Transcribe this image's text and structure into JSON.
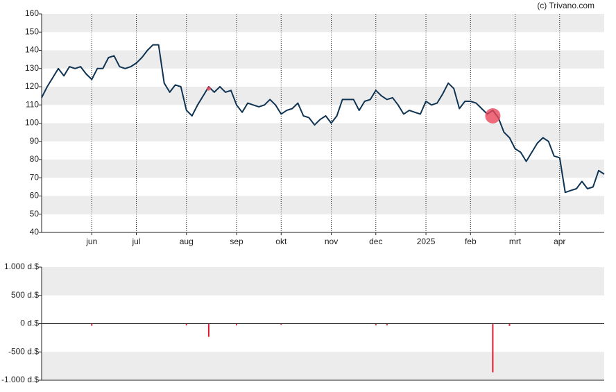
{
  "credit": "(c) Trivano.com",
  "chart_data": [
    {
      "type": "line",
      "categories": [
        null,
        null,
        null,
        null,
        null,
        null,
        null,
        null,
        null,
        "jun",
        null,
        null,
        null,
        null,
        null,
        null,
        null,
        "jul",
        null,
        null,
        null,
        null,
        null,
        null,
        null,
        null,
        "aug",
        null,
        null,
        null,
        null,
        null,
        null,
        null,
        null,
        "sep",
        null,
        null,
        null,
        null,
        null,
        null,
        null,
        "okt",
        null,
        null,
        null,
        null,
        null,
        null,
        null,
        null,
        "nov",
        null,
        null,
        null,
        null,
        null,
        null,
        null,
        "dec",
        null,
        null,
        null,
        null,
        null,
        null,
        null,
        null,
        "2025",
        null,
        null,
        null,
        null,
        null,
        null,
        null,
        "feb",
        null,
        null,
        null,
        null,
        null,
        null,
        null,
        "mrt",
        null,
        null,
        null,
        null,
        null,
        null,
        null,
        "apr",
        null,
        null,
        null,
        null,
        null,
        null,
        null,
        null
      ],
      "series": [
        {
          "color": "#0f3352",
          "values": [
            114,
            120,
            125,
            130,
            126,
            131,
            130,
            131,
            127,
            124,
            130,
            130,
            136,
            137,
            131,
            130,
            131,
            133,
            136,
            140,
            143,
            143,
            122,
            117,
            121,
            120,
            107,
            104,
            110,
            115,
            120,
            117,
            120,
            117,
            118,
            110,
            106,
            111,
            110,
            109,
            110,
            113,
            110,
            105,
            107,
            108,
            111,
            104,
            103,
            99,
            102,
            104,
            100,
            104,
            113,
            113,
            113,
            107,
            112,
            113,
            118,
            115,
            113,
            114,
            110,
            105,
            107,
            106,
            105,
            112,
            110,
            111,
            116,
            122,
            119,
            108,
            112,
            112,
            111,
            108,
            105,
            107,
            103,
            95,
            92,
            86,
            84,
            79,
            84,
            89,
            92,
            90,
            82,
            81,
            62,
            63,
            64,
            68,
            64,
            65,
            74,
            72
          ]
        }
      ],
      "points": [
        {
          "x": 30,
          "value": 119,
          "size": 3
        },
        {
          "x": 81,
          "value": 104,
          "size": 11
        }
      ],
      "point_color": "#e8465a",
      "ylim": [
        40,
        160
      ],
      "yticks": [
        40,
        50,
        60,
        70,
        80,
        90,
        100,
        110,
        120,
        130,
        140,
        150,
        160
      ],
      "bands": [
        [
          150,
          160
        ],
        [
          130,
          140
        ],
        [
          110,
          120
        ],
        [
          90,
          100
        ],
        [
          70,
          80
        ],
        [
          50,
          60
        ]
      ]
    },
    {
      "type": "bar",
      "color": "#e0182d",
      "values": [
        null,
        null,
        null,
        null,
        null,
        null,
        null,
        null,
        null,
        -37,
        null,
        null,
        null,
        null,
        null,
        null,
        null,
        null,
        null,
        null,
        null,
        null,
        null,
        null,
        null,
        null,
        -30,
        null,
        null,
        null,
        -233,
        null,
        null,
        null,
        null,
        -30,
        null,
        null,
        null,
        null,
        null,
        null,
        null,
        -20,
        null,
        null,
        null,
        null,
        null,
        null,
        null,
        null,
        null,
        null,
        null,
        null,
        null,
        null,
        null,
        null,
        -30,
        null,
        -30,
        null,
        null,
        null,
        null,
        null,
        null,
        null,
        null,
        null,
        null,
        null,
        null,
        null,
        null,
        null,
        null,
        null,
        null,
        -860,
        null,
        null,
        -40,
        null,
        null,
        null,
        null,
        null,
        null,
        null,
        null,
        null,
        null,
        null,
        null,
        null,
        null,
        null,
        null,
        null
      ],
      "ylim": [
        -1000,
        1000
      ],
      "yticks": [
        {
          "value": -1000,
          "label": "-1.000 d.$"
        },
        {
          "value": -500,
          "label": "-500 d.$"
        },
        {
          "value": 0,
          "label": "0 d.$"
        },
        {
          "value": 500,
          "label": "500 d.$"
        },
        {
          "value": 1000,
          "label": "1.000 d.$"
        }
      ],
      "bands": [
        [
          500,
          1000
        ],
        [
          -1000,
          -500
        ]
      ]
    }
  ]
}
